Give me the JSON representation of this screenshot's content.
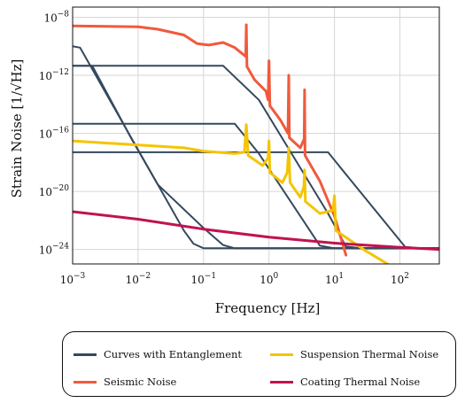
{
  "chart_data": {
    "type": "line",
    "xlabel": "Frequency [Hz]",
    "ylabel": "Strain Noise [1/√Hz]",
    "xscale": "log",
    "yscale": "log",
    "xlim": [
      0.001,
      400
    ],
    "ylim": [
      1e-25,
      5e-08
    ],
    "grid": true,
    "legend": "below",
    "x_ticks": [
      {
        "value": 0.001,
        "base": "10",
        "exp": "−3"
      },
      {
        "value": 0.01,
        "base": "10",
        "exp": "−2"
      },
      {
        "value": 0.1,
        "base": "10",
        "exp": "−1"
      },
      {
        "value": 1,
        "base": "10",
        "exp": "0"
      },
      {
        "value": 10,
        "base": "10",
        "exp": "1"
      },
      {
        "value": 100,
        "base": "10",
        "exp": "2"
      }
    ],
    "y_ticks": [
      {
        "value": 1e-24,
        "base": "10",
        "exp": "−24"
      },
      {
        "value": 1e-20,
        "base": "10",
        "exp": "−20"
      },
      {
        "value": 1e-16,
        "base": "10",
        "exp": "−16"
      },
      {
        "value": 1e-12,
        "base": "10",
        "exp": "−12"
      },
      {
        "value": 1e-08,
        "base": "10",
        "exp": "−8"
      }
    ],
    "series": [
      {
        "name": "Curves with Entanglement",
        "color": "#34495e",
        "lines": [
          [
            [
              0.001,
              1e-10
            ],
            [
              0.0013,
              8e-11
            ],
            [
              0.02,
              3e-20
            ],
            [
              0.05,
              2e-23
            ],
            [
              0.07,
              2.5e-24
            ],
            [
              0.1,
              1.2e-24
            ],
            [
              400,
              1.2e-24
            ]
          ],
          [
            [
              0.001,
              4.5e-12
            ],
            [
              0.2,
              4.5e-12
            ],
            [
              0.7,
              2e-14
            ],
            [
              8,
              3e-22
            ],
            [
              15,
              1.6e-24
            ],
            [
              25,
              1.2e-24
            ],
            [
              400,
              1.2e-24
            ]
          ],
          [
            [
              0.001,
              4.5e-16
            ],
            [
              0.3,
              4.5e-16
            ],
            [
              0.7,
              4e-18
            ],
            [
              6,
              1.8e-24
            ],
            [
              10,
              1.2e-24
            ],
            [
              400,
              1.2e-24
            ]
          ],
          [
            [
              0.001,
              5e-18
            ],
            [
              8,
              5e-18
            ],
            [
              20,
              3e-20
            ],
            [
              120,
              1.5e-24
            ],
            [
              200,
              1.2e-24
            ],
            [
              400,
              1.2e-24
            ]
          ],
          [
            [
              0.001,
              4.5e-12
            ],
            [
              0.002,
              4.5e-12
            ],
            [
              0.008,
              4e-17
            ],
            [
              0.02,
              3e-20
            ],
            [
              0.1,
              3e-23
            ],
            [
              0.2,
              2e-24
            ],
            [
              0.3,
              1.2e-24
            ],
            [
              400,
              1.2e-24
            ]
          ]
        ]
      },
      {
        "name": "Seismic Noise",
        "color": "#f05a3c",
        "lines": [
          [
            [
              0.001,
              2.5e-09
            ],
            [
              0.01,
              2.2e-09
            ],
            [
              0.02,
              1.5e-09
            ],
            [
              0.05,
              6e-10
            ],
            [
              0.08,
              1.5e-10
            ],
            [
              0.12,
              1.2e-10
            ],
            [
              0.2,
              1.8e-10
            ],
            [
              0.3,
              8e-11
            ],
            [
              0.44,
              2e-11
            ],
            [
              0.45,
              3e-09
            ],
            [
              0.46,
              4e-12
            ],
            [
              0.6,
              5e-13
            ],
            [
              0.9,
              8e-14
            ],
            [
              0.97,
              2e-14
            ],
            [
              1.0,
              1e-11
            ],
            [
              1.03,
              8e-15
            ],
            [
              1.5,
              8e-16
            ],
            [
              1.95,
              1e-16
            ],
            [
              2.0,
              1e-12
            ],
            [
              2.05,
              5e-17
            ],
            [
              3.0,
              1e-17
            ],
            [
              3.45,
              4e-17
            ],
            [
              3.5,
              1e-13
            ],
            [
              3.55,
              3e-18
            ],
            [
              6,
              5e-20
            ],
            [
              10,
              2e-22
            ],
            [
              15,
              4e-25
            ]
          ]
        ]
      },
      {
        "name": "Suspension Thermal Noise",
        "color": "#f5c400",
        "lines": [
          [
            [
              0.001,
              3e-17
            ],
            [
              0.05,
              1e-17
            ],
            [
              0.1,
              6e-18
            ],
            [
              0.3,
              4e-18
            ],
            [
              0.42,
              5e-18
            ],
            [
              0.45,
              4e-16
            ],
            [
              0.48,
              3e-18
            ],
            [
              0.8,
              6e-19
            ],
            [
              0.97,
              2e-18
            ],
            [
              1.0,
              3e-17
            ],
            [
              1.03,
              2e-19
            ],
            [
              1.6,
              4e-20
            ],
            [
              1.9,
              2e-19
            ],
            [
              2.0,
              1e-17
            ],
            [
              2.1,
              4e-20
            ],
            [
              3.0,
              4e-21
            ],
            [
              3.4,
              2e-20
            ],
            [
              3.5,
              3e-19
            ],
            [
              3.6,
              2e-21
            ],
            [
              6,
              3e-22
            ],
            [
              9.5,
              5e-22
            ],
            [
              10,
              5e-21
            ],
            [
              10.5,
              2e-23
            ],
            [
              30,
              8e-25
            ],
            [
              70,
              8e-26
            ]
          ]
        ]
      },
      {
        "name": "Coating Thermal Noise",
        "color": "#c0134f",
        "lines": [
          [
            [
              0.001,
              4e-22
            ],
            [
              0.01,
              1.2e-22
            ],
            [
              0.1,
              2.5e-23
            ],
            [
              1,
              7e-24
            ],
            [
              10,
              2.7e-24
            ],
            [
              100,
              1.4e-24
            ],
            [
              400,
              1e-24
            ]
          ]
        ]
      }
    ]
  }
}
